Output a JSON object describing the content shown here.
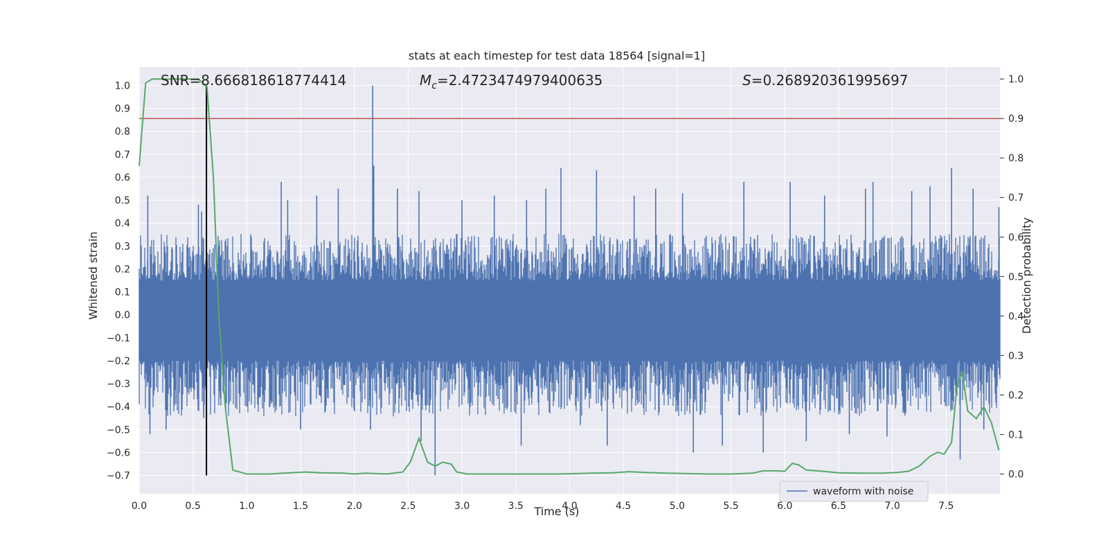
{
  "chart_data": {
    "type": "line",
    "title": "stats at each timestep for test data 18564 [signal=1]",
    "xlabel": "Time (s)",
    "ylabel_left": "Whitened strain",
    "ylabel_right": "Detection probability",
    "xlim": [
      0,
      8.0
    ],
    "ylim_left": [
      -0.78,
      1.08
    ],
    "ylim_right": [
      -0.05,
      1.03
    ],
    "x_ticks": [
      "0.0",
      "0.5",
      "1.0",
      "1.5",
      "2.0",
      "2.5",
      "3.0",
      "3.5",
      "4.0",
      "4.5",
      "5.0",
      "5.5",
      "6.0",
      "6.5",
      "7.0",
      "7.5"
    ],
    "y_ticks_left": [
      "1.0",
      "0.9",
      "0.8",
      "0.7",
      "0.6",
      "0.5",
      "0.4",
      "0.3",
      "0.2",
      "0.1",
      "0.0",
      "−0.1",
      "−0.2",
      "−0.3",
      "−0.4",
      "−0.5",
      "−0.6",
      "−0.7"
    ],
    "y_ticks_right": [
      "1.0",
      "0.9",
      "0.8",
      "0.7",
      "0.6",
      "0.5",
      "0.4",
      "0.3",
      "0.2",
      "0.1",
      "0.0"
    ],
    "grid": true,
    "legend_position": "bottom-right",
    "annotations": {
      "snr": "SNR=8.666818618774414",
      "mc_symbol": "M",
      "mc_sub": "c",
      "mc_value": "=2.4723474979400635",
      "s_symbol": "S",
      "s_value": "=0.268920361995697"
    },
    "threshold_line": {
      "y_right": 0.9,
      "color": "#c44e52"
    },
    "event_marker": {
      "x": 0.625,
      "y_range": [
        -0.7,
        1.0
      ],
      "color": "#000000"
    },
    "series": [
      {
        "name": "waveform with noise",
        "color": "#4c72b0",
        "axis": "left",
        "kind": "noise-envelope",
        "core_band": [
          -0.2,
          0.15
        ],
        "typical_band": [
          -0.38,
          0.3
        ],
        "spikes": [
          {
            "x": 0.08,
            "y": 0.52
          },
          {
            "x": 0.1,
            "y": -0.52
          },
          {
            "x": 0.25,
            "y": -0.5
          },
          {
            "x": 0.55,
            "y": 0.48
          },
          {
            "x": 0.58,
            "y": 0.45
          },
          {
            "x": 0.6,
            "y": -0.45
          },
          {
            "x": 1.0,
            "y": -0.4
          },
          {
            "x": 1.32,
            "y": 0.58
          },
          {
            "x": 1.38,
            "y": 0.5
          },
          {
            "x": 1.5,
            "y": -0.5
          },
          {
            "x": 1.65,
            "y": 0.52
          },
          {
            "x": 1.85,
            "y": 0.55
          },
          {
            "x": 2.0,
            "y": -0.42
          },
          {
            "x": 2.17,
            "y": 1.0
          },
          {
            "x": 2.18,
            "y": 0.65
          },
          {
            "x": 2.15,
            "y": -0.5
          },
          {
            "x": 2.4,
            "y": 0.55
          },
          {
            "x": 2.6,
            "y": 0.54
          },
          {
            "x": 2.75,
            "y": -0.7
          },
          {
            "x": 2.62,
            "y": -0.55
          },
          {
            "x": 3.0,
            "y": 0.5
          },
          {
            "x": 3.3,
            "y": 0.52
          },
          {
            "x": 3.55,
            "y": -0.57
          },
          {
            "x": 3.6,
            "y": 0.5
          },
          {
            "x": 3.78,
            "y": 0.55
          },
          {
            "x": 3.92,
            "y": 0.64
          },
          {
            "x": 4.1,
            "y": -0.48
          },
          {
            "x": 4.25,
            "y": 0.63
          },
          {
            "x": 4.35,
            "y": -0.57
          },
          {
            "x": 4.6,
            "y": 0.52
          },
          {
            "x": 4.8,
            "y": 0.55
          },
          {
            "x": 5.05,
            "y": 0.53
          },
          {
            "x": 5.15,
            "y": -0.6
          },
          {
            "x": 5.42,
            "y": -0.57
          },
          {
            "x": 5.62,
            "y": 0.58
          },
          {
            "x": 5.8,
            "y": -0.6
          },
          {
            "x": 6.05,
            "y": 0.58
          },
          {
            "x": 6.2,
            "y": -0.55
          },
          {
            "x": 6.37,
            "y": 0.52
          },
          {
            "x": 6.6,
            "y": -0.52
          },
          {
            "x": 6.75,
            "y": 0.55
          },
          {
            "x": 6.82,
            "y": 0.58
          },
          {
            "x": 6.95,
            "y": -0.53
          },
          {
            "x": 7.18,
            "y": 0.54
          },
          {
            "x": 7.35,
            "y": 0.56
          },
          {
            "x": 7.55,
            "y": 0.64
          },
          {
            "x": 7.63,
            "y": -0.63
          },
          {
            "x": 7.75,
            "y": 0.55
          },
          {
            "x": 7.85,
            "y": -0.5
          },
          {
            "x": 7.99,
            "y": 0.47
          }
        ]
      },
      {
        "name": "",
        "color": "#55a868",
        "axis": "right",
        "kind": "line",
        "x": [
          0.0,
          0.06,
          0.12,
          0.25,
          0.4,
          0.55,
          0.63,
          0.69,
          0.74,
          0.8,
          0.87,
          1.0,
          1.2,
          1.4,
          1.55,
          1.7,
          1.9,
          2.0,
          2.1,
          2.3,
          2.45,
          2.52,
          2.6,
          2.68,
          2.75,
          2.82,
          2.9,
          2.95,
          3.05,
          3.3,
          3.6,
          3.9,
          4.2,
          4.4,
          4.55,
          4.7,
          4.9,
          5.1,
          5.3,
          5.5,
          5.7,
          5.8,
          5.9,
          6.0,
          6.07,
          6.13,
          6.2,
          6.35,
          6.5,
          6.7,
          6.9,
          7.05,
          7.15,
          7.25,
          7.35,
          7.42,
          7.48,
          7.55,
          7.6,
          7.65,
          7.7,
          7.78,
          7.85,
          7.92,
          7.99
        ],
        "y": [
          0.78,
          0.99,
          1.0,
          1.0,
          1.0,
          1.0,
          0.98,
          0.75,
          0.4,
          0.17,
          0.01,
          0.0,
          0.0,
          0.003,
          0.005,
          0.003,
          0.002,
          0.0,
          0.002,
          0.0,
          0.005,
          0.03,
          0.09,
          0.03,
          0.02,
          0.03,
          0.025,
          0.005,
          0.0,
          0.0,
          0.0,
          0.0,
          0.002,
          0.003,
          0.006,
          0.004,
          0.002,
          0.001,
          0.0,
          0.0,
          0.002,
          0.008,
          0.008,
          0.007,
          0.027,
          0.023,
          0.01,
          0.007,
          0.003,
          0.002,
          0.002,
          0.004,
          0.007,
          0.02,
          0.045,
          0.055,
          0.05,
          0.08,
          0.22,
          0.26,
          0.16,
          0.14,
          0.17,
          0.13,
          0.06
        ]
      }
    ]
  }
}
